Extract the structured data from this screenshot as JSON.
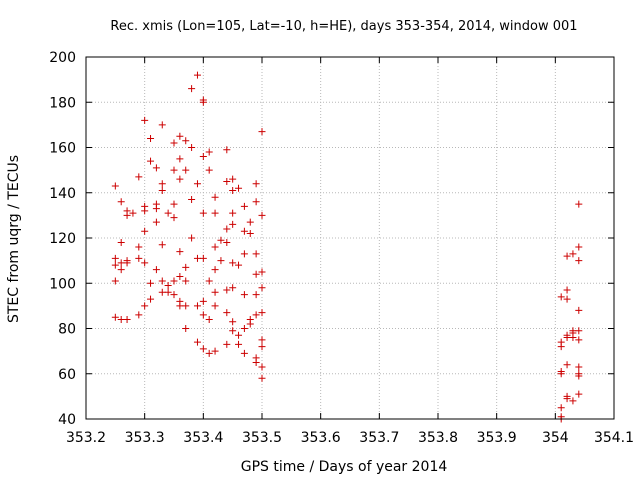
{
  "chart_data": {
    "type": "scatter",
    "title": "Rec. xmis (Lon=105, Lat=-10, h=HE), days 353-354, 2014, window 001",
    "xlabel": "GPS time / Days of year 2014",
    "ylabel": "STEC from uqrg / TECUs",
    "xlim": [
      353.2,
      354.1
    ],
    "ylim": [
      40,
      200
    ],
    "grid": true,
    "marker": "+",
    "color": "#cc0000",
    "xticks": [
      "353.2",
      "353.3",
      "353.4",
      "353.5",
      "353.6",
      "353.7",
      "353.8",
      "353.9",
      "354",
      "354.1"
    ],
    "yticks": [
      "40",
      "60",
      "80",
      "100",
      "120",
      "140",
      "160",
      "180",
      "200"
    ],
    "points": [
      [
        353.25,
        143
      ],
      [
        353.25,
        111
      ],
      [
        353.25,
        108
      ],
      [
        353.25,
        101
      ],
      [
        353.25,
        85
      ],
      [
        353.26,
        136
      ],
      [
        353.26,
        118
      ],
      [
        353.26,
        109
      ],
      [
        353.26,
        106
      ],
      [
        353.26,
        84
      ],
      [
        353.27,
        132
      ],
      [
        353.27,
        130
      ],
      [
        353.27,
        110
      ],
      [
        353.27,
        109
      ],
      [
        353.27,
        84
      ],
      [
        353.28,
        131
      ],
      [
        353.29,
        147
      ],
      [
        353.29,
        116
      ],
      [
        353.29,
        111
      ],
      [
        353.29,
        86
      ],
      [
        353.3,
        172
      ],
      [
        353.3,
        134
      ],
      [
        353.3,
        132
      ],
      [
        353.3,
        123
      ],
      [
        353.3,
        109
      ],
      [
        353.3,
        90
      ],
      [
        353.31,
        164
      ],
      [
        353.31,
        154
      ],
      [
        353.31,
        100
      ],
      [
        353.31,
        93
      ],
      [
        353.32,
        151
      ],
      [
        353.32,
        135
      ],
      [
        353.32,
        133
      ],
      [
        353.32,
        127
      ],
      [
        353.32,
        106
      ],
      [
        353.33,
        170
      ],
      [
        353.33,
        144
      ],
      [
        353.33,
        141
      ],
      [
        353.33,
        117
      ],
      [
        353.33,
        101
      ],
      [
        353.33,
        96
      ],
      [
        353.34,
        131
      ],
      [
        353.34,
        96
      ],
      [
        353.34,
        99
      ],
      [
        353.35,
        162
      ],
      [
        353.35,
        150
      ],
      [
        353.35,
        135
      ],
      [
        353.35,
        129
      ],
      [
        353.35,
        101
      ],
      [
        353.35,
        95
      ],
      [
        353.36,
        165
      ],
      [
        353.36,
        155
      ],
      [
        353.36,
        146
      ],
      [
        353.36,
        114
      ],
      [
        353.36,
        103
      ],
      [
        353.36,
        92
      ],
      [
        353.36,
        90
      ],
      [
        353.37,
        163
      ],
      [
        353.37,
        150
      ],
      [
        353.37,
        107
      ],
      [
        353.37,
        101
      ],
      [
        353.37,
        90
      ],
      [
        353.37,
        80
      ],
      [
        353.38,
        186
      ],
      [
        353.38,
        160
      ],
      [
        353.38,
        137
      ],
      [
        353.38,
        120
      ],
      [
        353.39,
        192
      ],
      [
        353.39,
        144
      ],
      [
        353.39,
        111
      ],
      [
        353.39,
        90
      ],
      [
        353.39,
        74
      ],
      [
        353.4,
        181
      ],
      [
        353.4,
        180
      ],
      [
        353.4,
        156
      ],
      [
        353.4,
        131
      ],
      [
        353.4,
        111
      ],
      [
        353.4,
        92
      ],
      [
        353.4,
        86
      ],
      [
        353.4,
        71
      ],
      [
        353.41,
        158
      ],
      [
        353.41,
        150
      ],
      [
        353.41,
        101
      ],
      [
        353.41,
        84
      ],
      [
        353.41,
        69
      ],
      [
        353.42,
        138
      ],
      [
        353.42,
        131
      ],
      [
        353.42,
        116
      ],
      [
        353.42,
        106
      ],
      [
        353.42,
        96
      ],
      [
        353.42,
        90
      ],
      [
        353.42,
        70
      ],
      [
        353.43,
        119
      ],
      [
        353.43,
        110
      ],
      [
        353.44,
        159
      ],
      [
        353.44,
        145
      ],
      [
        353.44,
        124
      ],
      [
        353.44,
        118
      ],
      [
        353.44,
        97
      ],
      [
        353.44,
        87
      ],
      [
        353.44,
        73
      ],
      [
        353.45,
        146
      ],
      [
        353.45,
        141
      ],
      [
        353.45,
        131
      ],
      [
        353.45,
        126
      ],
      [
        353.45,
        109
      ],
      [
        353.45,
        98
      ],
      [
        353.45,
        83
      ],
      [
        353.45,
        79
      ],
      [
        353.46,
        142
      ],
      [
        353.46,
        108
      ],
      [
        353.46,
        77
      ],
      [
        353.46,
        73
      ],
      [
        353.47,
        134
      ],
      [
        353.47,
        123
      ],
      [
        353.47,
        113
      ],
      [
        353.47,
        95
      ],
      [
        353.47,
        80
      ],
      [
        353.47,
        69
      ],
      [
        353.48,
        127
      ],
      [
        353.48,
        122
      ],
      [
        353.48,
        84
      ],
      [
        353.48,
        82
      ],
      [
        353.49,
        144
      ],
      [
        353.49,
        136
      ],
      [
        353.49,
        113
      ],
      [
        353.49,
        104
      ],
      [
        353.49,
        95
      ],
      [
        353.49,
        86
      ],
      [
        353.49,
        67
      ],
      [
        353.49,
        65
      ],
      [
        353.5,
        167
      ],
      [
        353.5,
        130
      ],
      [
        353.5,
        105
      ],
      [
        353.5,
        98
      ],
      [
        353.5,
        87
      ],
      [
        353.5,
        75
      ],
      [
        353.5,
        72
      ],
      [
        353.5,
        63
      ],
      [
        353.5,
        58
      ],
      [
        354.01,
        94
      ],
      [
        354.01,
        74
      ],
      [
        354.01,
        72
      ],
      [
        354.01,
        61
      ],
      [
        354.01,
        60
      ],
      [
        354.01,
        45
      ],
      [
        354.01,
        41
      ],
      [
        354.01,
        40
      ],
      [
        354.02,
        112
      ],
      [
        354.02,
        97
      ],
      [
        354.02,
        93
      ],
      [
        354.02,
        77
      ],
      [
        354.02,
        76
      ],
      [
        354.02,
        64
      ],
      [
        354.02,
        50
      ],
      [
        354.02,
        49
      ],
      [
        354.03,
        113
      ],
      [
        354.03,
        79
      ],
      [
        354.03,
        76
      ],
      [
        354.03,
        48
      ],
      [
        354.03,
        78
      ],
      [
        354.04,
        135
      ],
      [
        354.04,
        116
      ],
      [
        354.04,
        110
      ],
      [
        354.04,
        88
      ],
      [
        354.04,
        79
      ],
      [
        354.04,
        75
      ],
      [
        354.04,
        63
      ],
      [
        354.04,
        60
      ],
      [
        354.04,
        59
      ],
      [
        354.04,
        51
      ]
    ]
  }
}
